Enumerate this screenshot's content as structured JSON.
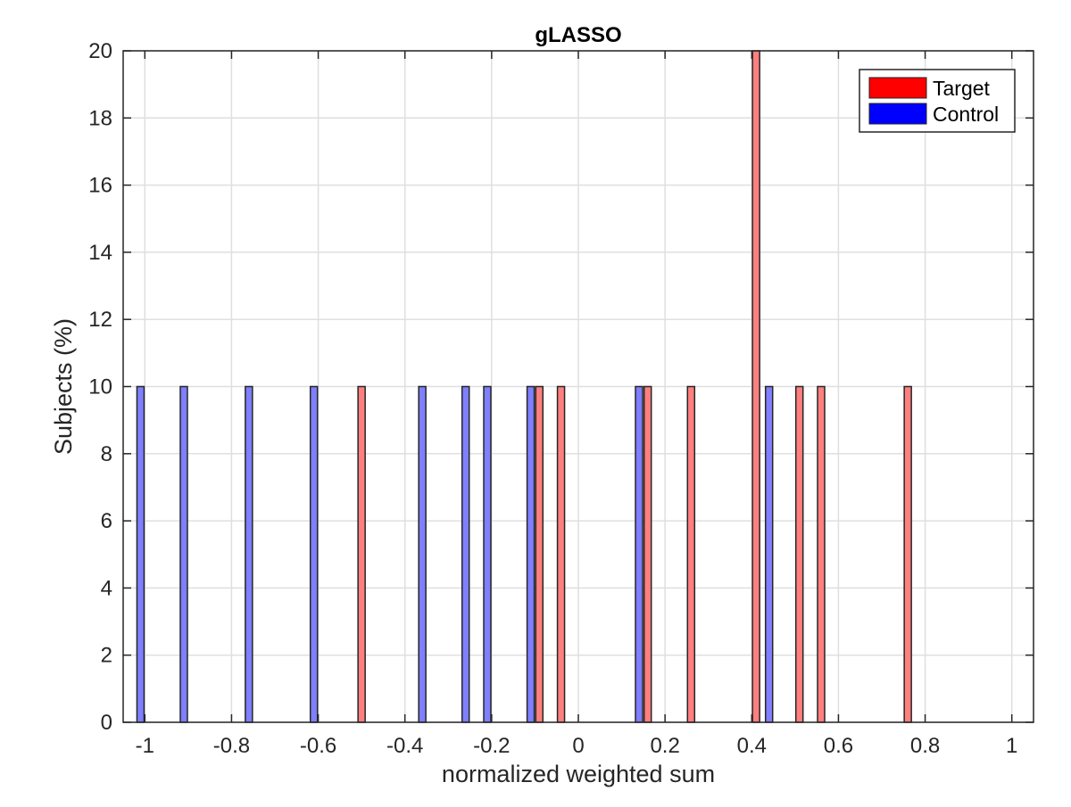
{
  "chart_data": {
    "type": "bar",
    "title": "gLASSO",
    "xlabel": "normalized weighted sum",
    "ylabel": "Subjects (%)",
    "xlim": [
      -1.05,
      1.05
    ],
    "ylim": [
      0,
      20
    ],
    "x_ticks": [
      "-1",
      "-0.8",
      "-0.6",
      "-0.4",
      "-0.2",
      "0",
      "0.2",
      "0.4",
      "0.6",
      "0.8",
      "1"
    ],
    "y_ticks": [
      "0",
      "2",
      "4",
      "6",
      "8",
      "10",
      "12",
      "14",
      "16",
      "18",
      "20"
    ],
    "grid": true,
    "legend_position": "top-right",
    "series": [
      {
        "name": "Target",
        "color": "#ff7f7f",
        "legend_color": "#ff0000",
        "points": [
          {
            "x": -0.5,
            "y": 10
          },
          {
            "x": -0.09,
            "y": 10
          },
          {
            "x": -0.04,
            "y": 10
          },
          {
            "x": 0.16,
            "y": 10
          },
          {
            "x": 0.26,
            "y": 10
          },
          {
            "x": 0.41,
            "y": 20
          },
          {
            "x": 0.51,
            "y": 10
          },
          {
            "x": 0.56,
            "y": 10
          },
          {
            "x": 0.76,
            "y": 10
          }
        ]
      },
      {
        "name": "Control",
        "color": "#7f7fff",
        "legend_color": "#0000ff",
        "points": [
          {
            "x": -1.01,
            "y": 10
          },
          {
            "x": -0.91,
            "y": 10
          },
          {
            "x": -0.76,
            "y": 10
          },
          {
            "x": -0.61,
            "y": 10
          },
          {
            "x": -0.36,
            "y": 10
          },
          {
            "x": -0.26,
            "y": 10
          },
          {
            "x": -0.21,
            "y": 10
          },
          {
            "x": -0.11,
            "y": 10
          },
          {
            "x": 0.14,
            "y": 10
          },
          {
            "x": 0.44,
            "y": 10
          }
        ]
      }
    ]
  }
}
